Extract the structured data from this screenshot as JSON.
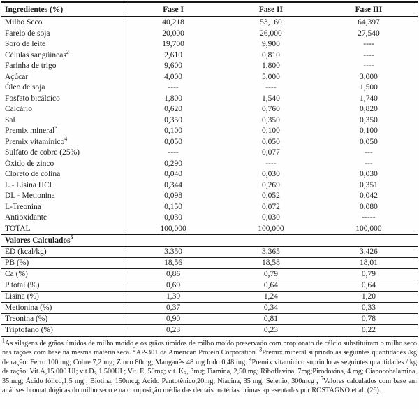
{
  "page": {
    "background": "#fefefe",
    "text_color": "#1c1c1c",
    "border_color": "#141414"
  },
  "table": {
    "header": [
      "Ingredientes (%)",
      "Fase I",
      "Fase II",
      "Fase III"
    ],
    "ingredient_rows": [
      {
        "label": "Milho Seco",
        "sup": "",
        "values": [
          "40,218",
          "53,160",
          "64,397"
        ]
      },
      {
        "label": "Farelo de soja",
        "sup": "",
        "values": [
          "20,000",
          "26,000",
          "27,540"
        ]
      },
      {
        "label": "Soro de leite",
        "sup": "",
        "values": [
          "19,700",
          "9,900",
          "----"
        ]
      },
      {
        "label": "Células sangüíneas",
        "sup": "2",
        "values": [
          "2,610",
          "0,810",
          "----"
        ]
      },
      {
        "label": "Farinha de trigo",
        "sup": "",
        "values": [
          "9,600",
          "1,800",
          "----"
        ]
      },
      {
        "label": "Açúcar",
        "sup": "",
        "values": [
          "4,000",
          "5,000",
          "3,000"
        ]
      },
      {
        "label": "Óleo de soja",
        "sup": "",
        "values": [
          "----",
          "----",
          "1,500"
        ]
      },
      {
        "label": "Fosfato bicálcico",
        "sup": "",
        "values": [
          "1,800",
          "1,540",
          "1,740"
        ]
      },
      {
        "label": "Calcário",
        "sup": "",
        "values": [
          "0,620",
          "0,760",
          "0,820"
        ]
      },
      {
        "label": "Sal",
        "sup": "",
        "values": [
          "0,350",
          "0,350",
          "0,350"
        ]
      },
      {
        "label": "Premix mineral",
        "sup": "3",
        "values": [
          "0,100",
          "0,100",
          "0,100"
        ]
      },
      {
        "label": "Premix vitamínico",
        "sup": "4",
        "values": [
          "0,050",
          "0,050",
          "0,050"
        ]
      },
      {
        "label": "Sulfato de cobre (25%)",
        "sup": "",
        "values": [
          "----",
          "0,077",
          "---"
        ]
      },
      {
        "label": "Óxido de zinco",
        "sup": "",
        "values": [
          "0,290",
          "----",
          "---"
        ]
      },
      {
        "label": "Cloreto de colina",
        "sup": "",
        "values": [
          "0,040",
          "0,030",
          "0,030"
        ]
      },
      {
        "label": "L - Lisina HCl",
        "sup": "",
        "values": [
          "0,344",
          "0,269",
          "0,351"
        ]
      },
      {
        "label": "DL - Metionina",
        "sup": "",
        "values": [
          "0,098",
          "0,052",
          "0,042"
        ]
      },
      {
        "label": "L-Treonina",
        "sup": "",
        "values": [
          "0,150",
          "0,072",
          "0,080"
        ]
      },
      {
        "label": "Antioxidante",
        "sup": "",
        "values": [
          "0,030",
          "0,030",
          "-----"
        ]
      },
      {
        "label": "TOTAL",
        "sup": "",
        "values": [
          "100,000",
          "100,000",
          "100,000"
        ]
      }
    ],
    "calculated_section": {
      "label": "Valores Calculados",
      "sup": "5"
    },
    "calculated_rows": [
      {
        "label": "ED (kcal/kg)",
        "sup": "",
        "values": [
          "3.350",
          "3.365",
          "3.426"
        ]
      },
      {
        "label": "PB (%)",
        "sup": "",
        "values": [
          "18,56",
          "18,58",
          "18,01"
        ]
      },
      {
        "label": "Ca (%)",
        "sup": "",
        "values": [
          "0,86",
          "0,79",
          "0,79"
        ]
      },
      {
        "label": "P total (%)",
        "sup": "",
        "values": [
          "0,69",
          "0,64",
          "0,64"
        ]
      },
      {
        "label": "Lisina  (%)",
        "sup": "",
        "values": [
          "1,39",
          "1,24",
          "1,20"
        ]
      },
      {
        "label": "Metionina (%)",
        "sup": "",
        "values": [
          "0,37",
          "0,34",
          "0,33"
        ]
      },
      {
        "label": "Treonina (%)",
        "sup": "",
        "values": [
          "0,90",
          "0,81",
          "0,78"
        ]
      },
      {
        "label": "Triptofano (%)",
        "sup": "",
        "values": [
          "0,23",
          "0,23",
          "0,22"
        ]
      }
    ]
  },
  "footnote": {
    "segments": [
      {
        "sup": "1"
      },
      {
        "text": "As silagens de grãos úmidos de milho moído e os grãos úmidos de milho moído preservado com propionato de cálcio substituíram o milho seco nas rações com base na mesma matéria seca. "
      },
      {
        "sup": "2"
      },
      {
        "text": "AP-301 da American Protein Corporation. "
      },
      {
        "sup": "3"
      },
      {
        "text": "Premix mineral suprindo as seguintes quantidades /kg de ração: Ferro 100 mg; Cobre 7,2 mg; Zinco 80mg; Manganês 48 mg Iodo 0,48 mg. "
      },
      {
        "sup": "4"
      },
      {
        "text": "Premix vitamínico suprindo as seguintes quantidades / kg de ração: Vit.A,15.000 UI; vit.D"
      },
      {
        "sub": "3"
      },
      {
        "text": " 1.500UI ; Vit. E, 50mg; vit. K"
      },
      {
        "sub": "3"
      },
      {
        "text": ", 3mg; Tiamina, 2,50 mg; Riboflavina, 7mg;Pirodoxina, 4 mg; Cianocobalamina, 35mcg; Ácido fólico,1,5 mg ; Biotina, 150mcg; Ácido Pantotênico,20mg; Niacina, 35 mg; Selenio, 300mcg , "
      },
      {
        "sup": "5"
      },
      {
        "text": "Valores calculados com base em análises bromatológicas do milho seco e na composição média das demais matérias primas apresentadas por ROSTAGNO et al. (26)."
      }
    ]
  }
}
